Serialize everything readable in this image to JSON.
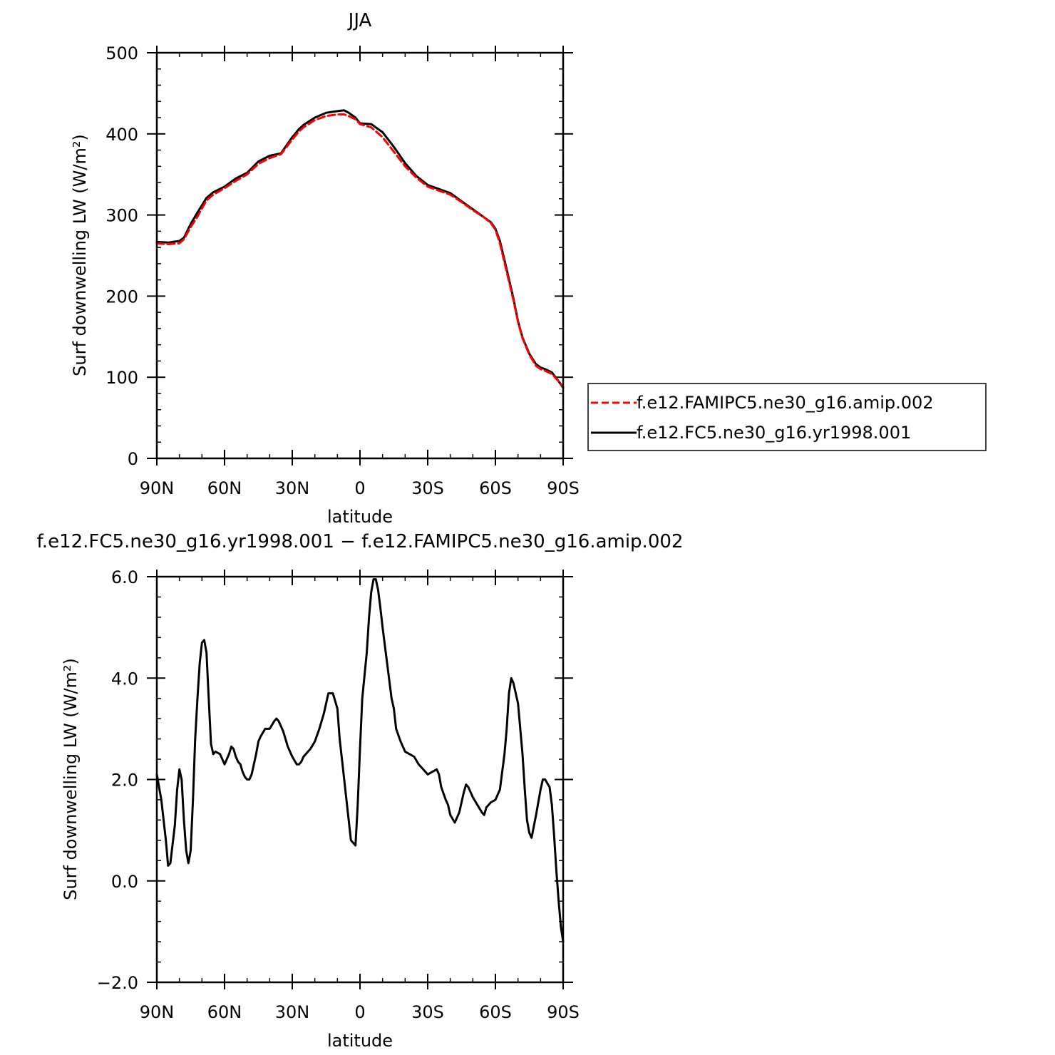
{
  "chart_data": [
    {
      "type": "line",
      "title": "JJA",
      "xlabel": "latitude",
      "ylabel": "Surf downwelling LW (W/m²)",
      "xlim": [
        90,
        -90
      ],
      "ylim": [
        0,
        500
      ],
      "xticks": [
        90,
        60,
        30,
        0,
        -30,
        -60,
        -90
      ],
      "xtick_labels": [
        "90N",
        "60N",
        "30N",
        "0",
        "30S",
        "60S",
        "90S"
      ],
      "yticks": [
        0,
        100,
        200,
        300,
        400,
        500
      ],
      "ytick_labels": [
        "0",
        "100",
        "200",
        "300",
        "400",
        "500"
      ],
      "legend_position": "right",
      "series": [
        {
          "name": "f.e12.FAMIPC5.ne30_g16.amip.002",
          "color": "#ff0000",
          "style": "dashed",
          "x": [
            90,
            85,
            80,
            78,
            75,
            72,
            70,
            68,
            65,
            60,
            55,
            50,
            45,
            40,
            35,
            30,
            27,
            25,
            20,
            15,
            10,
            7,
            5,
            2,
            0,
            -5,
            -10,
            -15,
            -20,
            -25,
            -30,
            -35,
            -40,
            -45,
            -50,
            -55,
            -58,
            -60,
            -62,
            -65,
            -68,
            -70,
            -72,
            -75,
            -78,
            -80,
            -82,
            -85,
            -88,
            -90
          ],
          "y": [
            265,
            264,
            265,
            270,
            285,
            298,
            308,
            318,
            325,
            333,
            342,
            350,
            363,
            370,
            375,
            393,
            403,
            408,
            417,
            422,
            424,
            424,
            422,
            418,
            412,
            408,
            396,
            378,
            360,
            346,
            335,
            330,
            325,
            316,
            306,
            297,
            290,
            282,
            265,
            230,
            195,
            168,
            148,
            128,
            114,
            110,
            108,
            104,
            95,
            88
          ]
        },
        {
          "name": "f.e12.FC5.ne30_g16.yr1998.001",
          "color": "#000000",
          "style": "solid",
          "x": [
            90,
            85,
            80,
            78,
            75,
            72,
            70,
            68,
            65,
            60,
            55,
            50,
            45,
            40,
            35,
            30,
            27,
            25,
            20,
            15,
            10,
            7,
            5,
            2,
            0,
            -5,
            -10,
            -15,
            -20,
            -25,
            -30,
            -35,
            -40,
            -45,
            -50,
            -55,
            -58,
            -60,
            -62,
            -65,
            -68,
            -70,
            -72,
            -75,
            -78,
            -80,
            -82,
            -85,
            -88,
            -90
          ],
          "y": [
            267,
            266,
            268,
            272,
            289,
            303,
            312,
            321,
            328,
            335,
            345,
            352,
            366,
            373,
            376,
            396,
            406,
            411,
            420,
            426,
            428,
            429,
            426,
            420,
            413,
            412,
            402,
            384,
            364,
            348,
            337,
            332,
            327,
            317,
            307,
            297,
            291,
            283,
            268,
            233,
            197,
            169,
            149,
            129,
            116,
            112,
            110,
            106,
            95,
            87
          ]
        }
      ]
    },
    {
      "type": "line",
      "title": "f.e12.FC5.ne30_g16.yr1998.001 − f.e12.FAMIPC5.ne30_g16.amip.002",
      "xlabel": "latitude",
      "ylabel": "Surf downwelling LW (W/m²)",
      "xlim": [
        90,
        -90
      ],
      "ylim": [
        -2,
        6
      ],
      "xticks": [
        90,
        60,
        30,
        0,
        -30,
        -60,
        -90
      ],
      "xtick_labels": [
        "90N",
        "60N",
        "30N",
        "0",
        "30S",
        "60S",
        "90S"
      ],
      "yticks": [
        -2,
        0,
        2,
        4,
        6
      ],
      "ytick_labels": [
        "−2.0",
        "0.0",
        "2.0",
        "4.0",
        "6.0"
      ],
      "series": [
        {
          "color": "#000000",
          "style": "solid",
          "x": [
            90,
            88,
            86,
            85,
            84,
            82,
            81,
            80,
            79,
            78,
            77,
            76,
            75,
            74,
            73,
            72,
            71,
            70,
            69,
            68,
            67,
            66,
            65,
            64,
            62,
            60,
            59,
            58,
            57,
            56,
            55,
            54,
            53,
            52,
            51,
            50,
            49,
            48,
            46,
            45,
            44,
            42,
            40,
            38,
            37,
            36,
            34,
            32,
            30,
            28,
            27,
            26,
            25,
            24,
            22,
            20,
            18,
            16,
            14,
            12,
            10,
            9,
            8,
            6,
            4,
            2,
            1,
            0,
            -1,
            -3,
            -4,
            -5,
            -6,
            -7,
            -8,
            -9,
            -10,
            -12,
            -14,
            -15,
            -16,
            -18,
            -20,
            -22,
            -24,
            -26,
            -28,
            -30,
            -32,
            -34,
            -35,
            -36,
            -38,
            -39,
            -40,
            -42,
            -44,
            -46,
            -47,
            -48,
            -50,
            -52,
            -54,
            -55,
            -56,
            -58,
            -60,
            -62,
            -64,
            -65,
            -66,
            -67,
            -68,
            -70,
            -72,
            -73,
            -74,
            -75,
            -76,
            -78,
            -80,
            -81,
            -82,
            -84,
            -85,
            -86,
            -87,
            -88,
            -89,
            -90
          ],
          "y": [
            2.1,
            1.6,
            0.8,
            0.3,
            0.35,
            1.1,
            1.8,
            2.2,
            2.0,
            1.2,
            0.6,
            0.35,
            0.6,
            1.6,
            2.8,
            3.6,
            4.3,
            4.7,
            4.75,
            4.5,
            3.6,
            2.7,
            2.5,
            2.55,
            2.5,
            2.3,
            2.4,
            2.5,
            2.65,
            2.6,
            2.45,
            2.35,
            2.3,
            2.15,
            2.05,
            2.0,
            2.0,
            2.1,
            2.5,
            2.75,
            2.85,
            3.0,
            3.0,
            3.15,
            3.2,
            3.15,
            2.95,
            2.65,
            2.45,
            2.3,
            2.3,
            2.35,
            2.45,
            2.5,
            2.6,
            2.75,
            3.0,
            3.3,
            3.7,
            3.7,
            3.4,
            2.8,
            2.4,
            1.6,
            0.8,
            0.7,
            1.5,
            2.6,
            3.6,
            4.5,
            5.2,
            5.7,
            5.95,
            5.95,
            5.75,
            5.4,
            5.0,
            4.3,
            3.6,
            3.4,
            3.0,
            2.75,
            2.55,
            2.5,
            2.45,
            2.3,
            2.2,
            2.1,
            2.15,
            2.2,
            2.1,
            1.85,
            1.6,
            1.5,
            1.3,
            1.15,
            1.35,
            1.75,
            1.9,
            1.85,
            1.65,
            1.5,
            1.35,
            1.3,
            1.45,
            1.55,
            1.6,
            1.8,
            2.5,
            3.0,
            3.7,
            4.0,
            3.9,
            3.5,
            2.5,
            1.8,
            1.2,
            0.95,
            0.85,
            1.3,
            1.8,
            2.0,
            2.0,
            1.85,
            1.5,
            0.9,
            0.2,
            -0.4,
            -0.9,
            -1.2
          ]
        }
      ]
    }
  ]
}
